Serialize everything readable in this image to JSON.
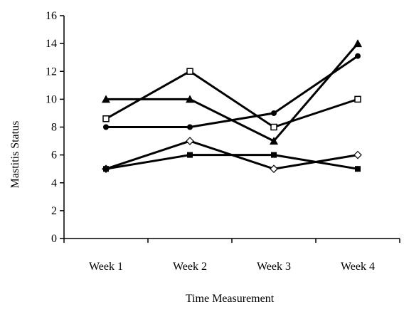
{
  "chart_data": {
    "type": "line",
    "title": "",
    "xlabel": "Time Measurement",
    "ylabel": "Mastitis Status",
    "categories": [
      "Week 1",
      "Week 2",
      "Week 3",
      "Week 4"
    ],
    "ylim": [
      0,
      16
    ],
    "yticks": [
      0,
      2,
      4,
      6,
      8,
      10,
      12,
      14,
      16
    ],
    "grid": false,
    "legend": "none",
    "series": [
      {
        "marker": "filled-triangle",
        "values": [
          10,
          10,
          7,
          14
        ]
      },
      {
        "marker": "filled-circle",
        "values": [
          8,
          8,
          9,
          13.1
        ]
      },
      {
        "marker": "open-square",
        "values": [
          8.6,
          12,
          8,
          10
        ]
      },
      {
        "marker": "open-diamond",
        "values": [
          5,
          7,
          5,
          6
        ]
      },
      {
        "marker": "filled-square",
        "values": [
          5,
          6,
          6,
          5
        ]
      }
    ],
    "colors": {
      "line": "#000000",
      "open_fill": "#ffffff"
    }
  }
}
